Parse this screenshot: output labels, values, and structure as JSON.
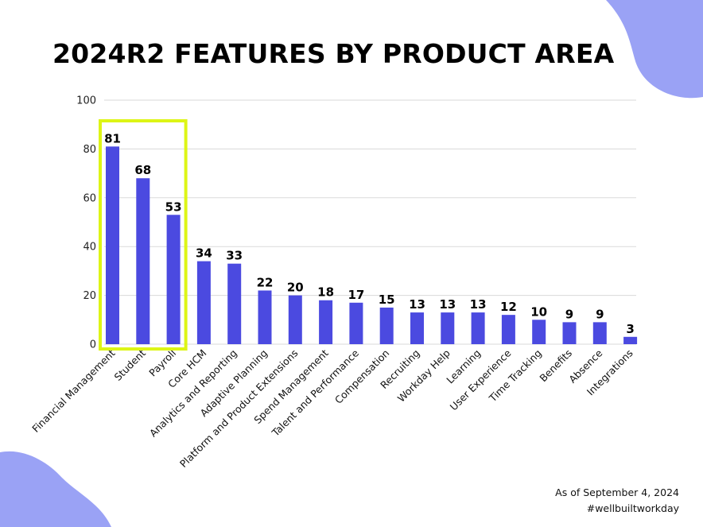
{
  "colors": {
    "bar": "#4B4AE0",
    "highlight_box": "#DDF516",
    "blob": "#9AA2F5",
    "grid": "#DADADA",
    "text": "#000000"
  },
  "footer": {
    "date": "As of September 4, 2024",
    "hashtag": "#wellbuiltworkday"
  },
  "chart_data": {
    "type": "bar",
    "title": "2024R2 FEATURES BY PRODUCT AREA",
    "xlabel": "",
    "ylabel": "",
    "ylim": [
      0,
      100
    ],
    "yticks": [
      0,
      20,
      40,
      60,
      80,
      100
    ],
    "grid": true,
    "categories": [
      "Financial Management",
      "Student",
      "Payroll",
      "Core HCM",
      "Analytics and Reporting",
      "Adaptive Planning",
      "Platform and Product Extensions",
      "Spend Management",
      "Talent and Performance",
      "Compensation",
      "Recruiting",
      "Workday Help",
      "Learning",
      "User Experience",
      "Time Tracking",
      "Benefits",
      "Absence",
      "Integrations"
    ],
    "values": [
      81,
      68,
      53,
      34,
      33,
      22,
      20,
      18,
      17,
      15,
      13,
      13,
      13,
      12,
      10,
      9,
      9,
      3
    ],
    "highlighted_categories": [
      "Financial Management",
      "Student",
      "Payroll"
    ]
  }
}
